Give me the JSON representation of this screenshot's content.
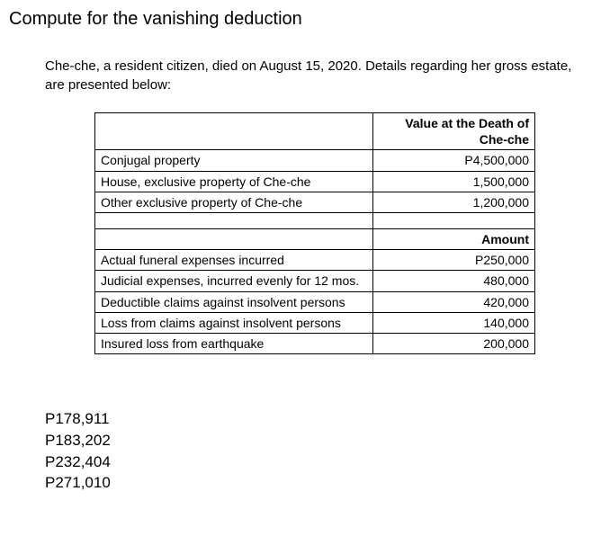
{
  "title": "Compute for the vanishing deduction",
  "intro": "Che-che, a resident citizen, died on August 15, 2020.  Details regarding her gross estate, are presented below:",
  "table": {
    "header1": "Value at the Death of Che-che",
    "header2": "Amount",
    "rows_part1": [
      {
        "label": "Conjugal property",
        "value": "P4,500,000"
      },
      {
        "label": "House, exclusive property of Che-che",
        "value": "1,500,000"
      },
      {
        "label": "Other exclusive property of Che-che",
        "value": "1,200,000"
      }
    ],
    "rows_part2": [
      {
        "label": "Actual funeral expenses incurred",
        "value": "P250,000"
      },
      {
        "label": "Judicial expenses, incurred evenly for 12 mos.",
        "value": "480,000"
      },
      {
        "label": "Deductible claims against insolvent persons",
        "value": "420,000"
      },
      {
        "label": "Loss from claims against insolvent persons",
        "value": "140,000"
      },
      {
        "label": "Insured loss from earthquake",
        "value": "200,000"
      }
    ]
  },
  "answers": [
    "P178,911",
    "P183,202",
    "P232,404",
    "P271,010"
  ]
}
